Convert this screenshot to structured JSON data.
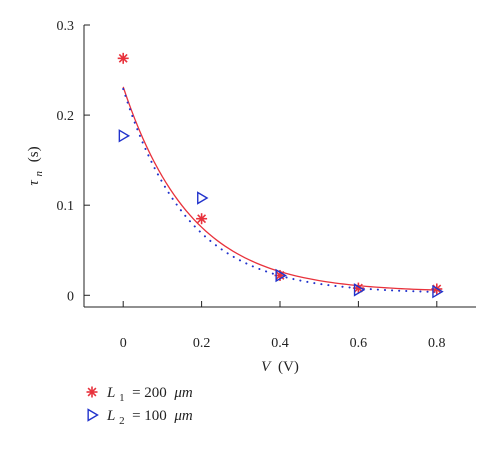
{
  "chart_data": {
    "type": "scatter",
    "xlabel": {
      "var": "V",
      "unit": "(V)"
    },
    "ylabel": {
      "var": "τ",
      "sub": "n",
      "unit": "(s)"
    },
    "xlim": [
      -0.1,
      0.9
    ],
    "ylim": [
      -0.013,
      0.3
    ],
    "x_ticks": [
      0,
      0.2,
      0.4,
      0.6,
      0.8
    ],
    "x_tick_labels": [
      "0",
      "0.2",
      "0.4",
      "0.6",
      "0.8"
    ],
    "y_ticks": [
      0,
      0.1,
      0.2,
      0.3
    ],
    "y_tick_labels": [
      "0",
      "0.1",
      "0.2",
      "0.3"
    ],
    "grid": false,
    "legend_position": "bottom-left, below plot",
    "series": [
      {
        "name": "L1 = 200 μm",
        "legend": {
          "var": "L",
          "sub": "1",
          "rest": " = 200 ",
          "unit": "μm"
        },
        "marker": "asterisk",
        "color": "#e8323c",
        "fit": "solid",
        "x": [
          0,
          0.2,
          0.4,
          0.6,
          0.8
        ],
        "y": [
          0.263,
          0.085,
          0.022,
          0.008,
          0.007
        ]
      },
      {
        "name": "L2 = 100 μm",
        "legend": {
          "var": "L",
          "sub": "2",
          "rest": " = 100 ",
          "unit": "μm"
        },
        "marker": "triangle-right",
        "color": "#2233cc",
        "fit": "dotted",
        "x": [
          0,
          0.2,
          0.4,
          0.6,
          0.8
        ],
        "y": [
          0.177,
          0.108,
          0.022,
          0.006,
          0.004
        ]
      }
    ]
  }
}
